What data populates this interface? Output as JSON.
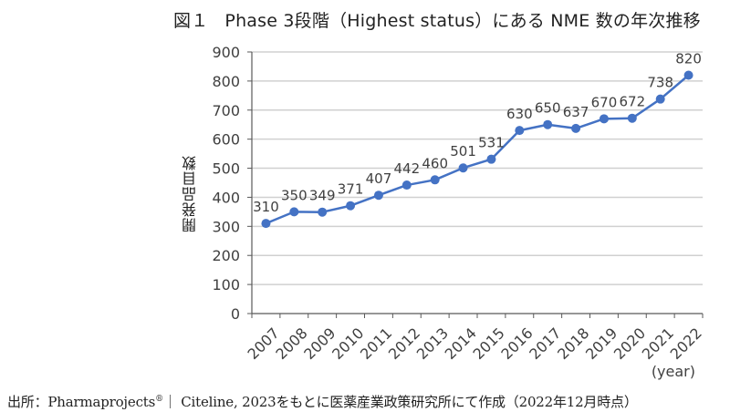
{
  "figure": {
    "label": "図１",
    "title": "Phase 3段階（Highest status）にある NME 数の年次推移"
  },
  "source_note": {
    "prefix": "出所：Pharmaprojects",
    "registered_mark": "®",
    "suffix": "｜ Citeline, 2023をもとに医薬産業政策研究所にて作成（2022年12月時点）"
  },
  "colors": {
    "series": "#4472c4",
    "grid": "#d0d0d0",
    "axis": "#595959"
  },
  "chart_data": {
    "type": "line",
    "title": "図１　Phase 3段階（Highest status）にある NME 数の年次推移",
    "xlabel": "(year)",
    "ylabel": "開発品目数",
    "categories": [
      "2007",
      "2008",
      "2009",
      "2010",
      "2011",
      "2012",
      "2013",
      "2014",
      "2015",
      "2016",
      "2017",
      "2018",
      "2019",
      "2020",
      "2021",
      "2022"
    ],
    "series": [
      {
        "name": "NME数",
        "values": [
          310,
          350,
          349,
          371,
          407,
          442,
          460,
          501,
          531,
          630,
          650,
          637,
          670,
          672,
          738,
          820
        ]
      }
    ],
    "ylim": [
      0,
      900
    ],
    "yticks": [
      0,
      100,
      200,
      300,
      400,
      500,
      600,
      700,
      800,
      900
    ],
    "grid": true,
    "legend": "none",
    "data_labels": true,
    "markers": "circle"
  }
}
